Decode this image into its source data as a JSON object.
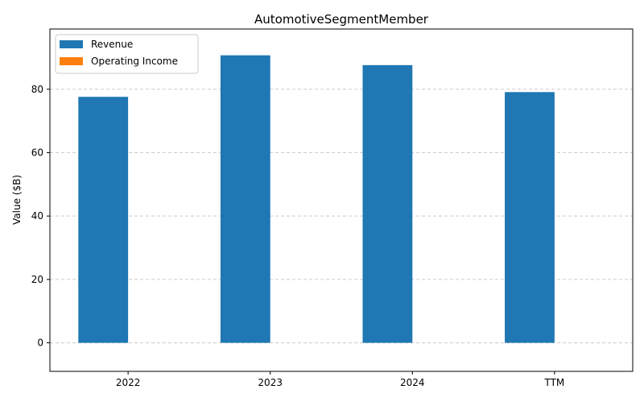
{
  "chart_data": {
    "type": "bar",
    "title": "AutomotiveSegmentMember",
    "xlabel": "",
    "ylabel": "Value ($B)",
    "categories": [
      "2022",
      "2023",
      "2024",
      "TTM"
    ],
    "series": [
      {
        "name": "Revenue",
        "values": [
          77.6,
          90.7,
          87.6,
          79.1
        ],
        "color": "#1f77b4"
      },
      {
        "name": "Operating Income",
        "values": [
          0,
          0,
          0,
          0
        ],
        "color": "#ff7f0e"
      }
    ],
    "ylim": [
      -9,
      99
    ],
    "yticks": [
      0,
      20,
      40,
      60,
      80
    ],
    "grid": "y-dashed",
    "legend_position": "top-left"
  }
}
